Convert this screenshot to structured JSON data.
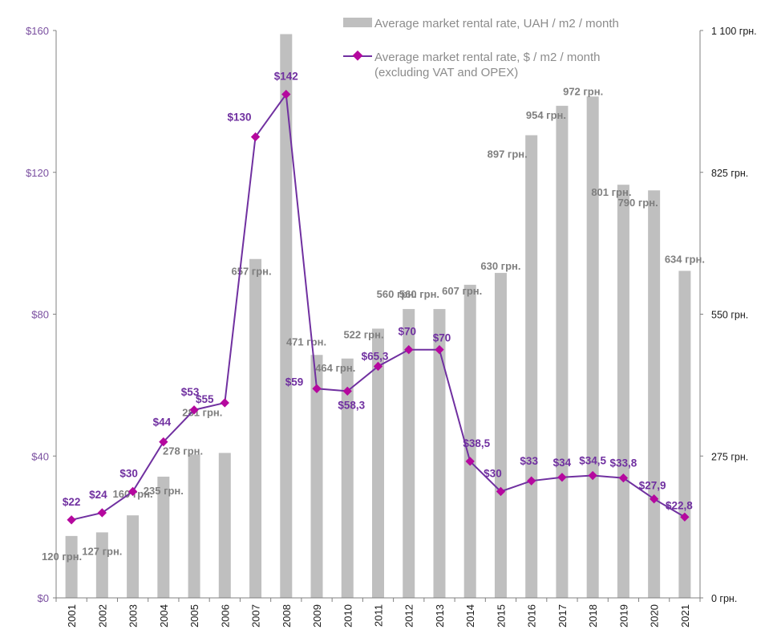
{
  "chart_data": {
    "type": "bar",
    "title": "",
    "xlabel": "",
    "ylabel": "",
    "categories": [
      "2001",
      "2002",
      "2003",
      "2004",
      "2005",
      "2006",
      "2007",
      "2008",
      "2009",
      "2010",
      "2011",
      "2012",
      "2013",
      "2014",
      "2015",
      "2016",
      "2017",
      "2018",
      "2019",
      "2020",
      "2021"
    ],
    "series": [
      {
        "name": "Average market rental rate, UAH / m2 / month",
        "type": "bar",
        "axis": "right",
        "color": "#bfbfbf",
        "values": [
          120,
          127,
          160,
          235,
          278,
          281,
          657,
          1093,
          471,
          464,
          522,
          560,
          560,
          607,
          630,
          897,
          954,
          972,
          801,
          790,
          634
        ],
        "labels": [
          "120 грн.",
          "127 грн.",
          "160 грн.",
          "235 грн.",
          "278 грн.",
          "281 грн.",
          "657 грн.",
          "1 093 грн.",
          "471 грн.",
          "464 грн.",
          "522 грн.",
          "560 грн.",
          "560 грн.",
          "607 грн.",
          "630 грн.",
          "897 грн.",
          "954 грн.",
          "972 грн.",
          "801 грн.",
          "790 грн.",
          "634 грн."
        ]
      },
      {
        "name": "Average market rental rate, $ / m2 / month (excluding VAT and OPEX)",
        "type": "line",
        "axis": "left",
        "color": "#7030a0",
        "marker_color": "#b5089e",
        "values": [
          22,
          24,
          30,
          44,
          53,
          55,
          130,
          142,
          59,
          58.3,
          65.3,
          70,
          70,
          38.5,
          30,
          33,
          34,
          34.5,
          33.8,
          27.9,
          22.8
        ],
        "labels": [
          "$22",
          "$24",
          "$30",
          "$44",
          "$53",
          "$55",
          "$130",
          "$142",
          "$59",
          "$58,3",
          "$65,3",
          "$70",
          "$70",
          "$38,5",
          "$30",
          "$33",
          "$34",
          "$34,5",
          "$33,8",
          "$27,9",
          "$22,8"
        ]
      }
    ],
    "left_axis": {
      "range": [
        0,
        160
      ],
      "ticks": [
        0,
        40,
        80,
        120,
        160
      ],
      "tick_labels": [
        "$0",
        "$40",
        "$80",
        "$120",
        "$160"
      ],
      "color": "#7a4fa0"
    },
    "right_axis": {
      "range": [
        0,
        1100
      ],
      "ticks": [
        0,
        275,
        550,
        825,
        1100
      ],
      "tick_labels": [
        "0 грн.",
        "275 грн.",
        "550 грн.",
        "825 грн.",
        "1 100 грн."
      ]
    },
    "grid": false,
    "legend": {
      "position": "top-right",
      "entries": [
        {
          "label": "Average market rental rate, UAH / m2 / month",
          "symbol": "bar"
        },
        {
          "label_line1": "Average market rental rate, $ / m2 / month",
          "label_line2": "(excluding VAT and OPEX)",
          "symbol": "line-diamond"
        }
      ]
    }
  }
}
